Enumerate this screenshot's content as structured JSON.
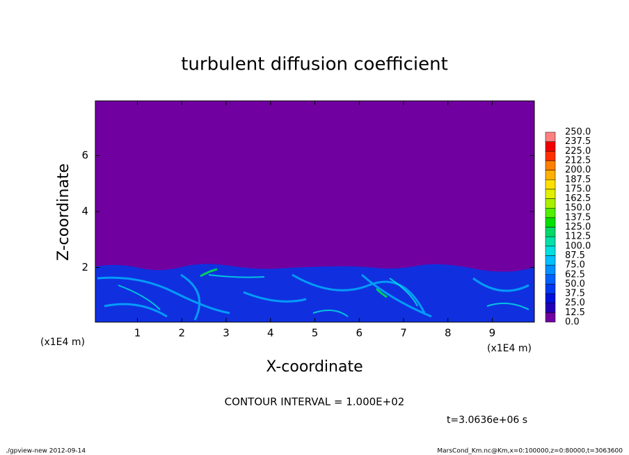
{
  "chart_data": {
    "type": "contour",
    "title": "turbulent diffusion coefficient",
    "xlabel": "X-coordinate",
    "ylabel": "Z-coordinate",
    "xunit": "(x1E4 m)",
    "yunit": "(x1E4 m)",
    "xlim": [
      0.05,
      9.95
    ],
    "ylim": [
      0.05,
      7.95
    ],
    "xticks": [
      1,
      2,
      3,
      4,
      5,
      6,
      7,
      8,
      9
    ],
    "yticks": [
      2,
      4,
      6
    ],
    "colorbar": {
      "levels": [
        {
          "value": 0,
          "label": "0.0"
        },
        {
          "value": 12.5,
          "label": "12.5"
        },
        {
          "value": 25,
          "label": "25.0"
        },
        {
          "value": 37.5,
          "label": "37.5"
        },
        {
          "value": 50,
          "label": "50.0"
        },
        {
          "value": 62.5,
          "label": "62.5"
        },
        {
          "value": 75,
          "label": "75.0"
        },
        {
          "value": 87.5,
          "label": "87.5"
        },
        {
          "value": 100,
          "label": "100.0"
        },
        {
          "value": 112.5,
          "label": "112.5"
        },
        {
          "value": 125,
          "label": "125.0"
        },
        {
          "value": 137.5,
          "label": "137.5"
        },
        {
          "value": 150,
          "label": "150.0"
        },
        {
          "value": 162.5,
          "label": "162.5"
        },
        {
          "value": 175,
          "label": "175.0"
        },
        {
          "value": 187.5,
          "label": "187.5"
        },
        {
          "value": 200,
          "label": "200.0"
        },
        {
          "value": 212.5,
          "label": "212.5"
        },
        {
          "value": 225,
          "label": "225.0"
        },
        {
          "value": 237.5,
          "label": "237.5"
        },
        {
          "value": 250,
          "label": "250.0"
        }
      ],
      "colors": [
        "#7000a0",
        "#2400b4",
        "#0010d8",
        "#0038f0",
        "#0060ff",
        "#0090ff",
        "#00c0ff",
        "#00e0e0",
        "#00e0a8",
        "#00d868",
        "#00e000",
        "#50f000",
        "#a8f000",
        "#e0f000",
        "#ffe000",
        "#ffb000",
        "#ff8000",
        "#ff3000",
        "#f00000",
        "#ff8080"
      ]
    },
    "annotation": "CONTOUR INTERVAL = 1.000E+02",
    "time_label": "t=3.0636e+06 s",
    "footer_left": "./gpview-new  2012-09-14",
    "footer_right": "MarsCond_Km.nc@Km,x=0:100000,z=0:80000,t=3063600"
  }
}
